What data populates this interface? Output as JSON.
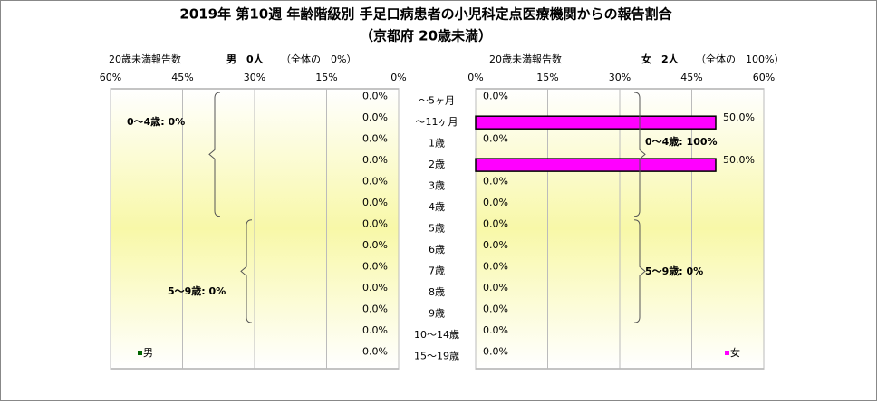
{
  "chart_data": {
    "type": "pyramid",
    "title": "2019年 第10週 年齢階級別 手足口病患者の小児科定点医療機関からの報告割合",
    "subtitle": "（京都府 20歳未満）",
    "categories": [
      "～5ヶ月",
      "～11ヶ月",
      "1歳",
      "2歳",
      "3歳",
      "4歳",
      "5歳",
      "6歳",
      "7歳",
      "8歳",
      "9歳",
      "10～14歳",
      "15～19歳"
    ],
    "panels": [
      {
        "side": "left",
        "count_label": "20歳未満報告数",
        "count": "男　0人",
        "share": "（全体の　0%）",
        "xlim": [
          0,
          60
        ],
        "xticks": [
          {
            "value": 0,
            "label": "0%"
          },
          {
            "value": 15,
            "label": "15%"
          },
          {
            "value": 30,
            "label": "30%"
          },
          {
            "value": 45,
            "label": "45%"
          },
          {
            "value": 60,
            "label": "60%"
          }
        ],
        "series": [
          {
            "name": "男",
            "color": "#006400",
            "values": [
              0,
              0,
              0,
              0,
              0,
              0,
              0,
              0,
              0,
              0,
              0,
              0,
              0
            ],
            "value_labels": [
              "0.0%",
              "0.0%",
              "0.0%",
              "0.0%",
              "0.0%",
              "0.0%",
              "0.0%",
              "0.0%",
              "0.0%",
              "0.0%",
              "0.0%",
              "0.0%",
              "0.0%"
            ]
          }
        ],
        "annotations": [
          "0～4歳: 0%",
          "5～9歳: 0%"
        ]
      },
      {
        "side": "right",
        "count_label": "20歳未満報告数",
        "count": "女　2人",
        "share": "（全体の　100%）",
        "xlim": [
          0,
          60
        ],
        "xticks": [
          {
            "value": 0,
            "label": "0%"
          },
          {
            "value": 15,
            "label": "15%"
          },
          {
            "value": 30,
            "label": "30%"
          },
          {
            "value": 45,
            "label": "45%"
          },
          {
            "value": 60,
            "label": "60%"
          }
        ],
        "series": [
          {
            "name": "女",
            "color": "#ff00ff",
            "values": [
              0,
              50,
              0,
              50,
              0,
              0,
              0,
              0,
              0,
              0,
              0,
              0,
              0
            ],
            "value_labels": [
              "0.0%",
              "50.0%",
              "0.0%",
              "50.0%",
              "0.0%",
              "0.0%",
              "0.0%",
              "0.0%",
              "0.0%",
              "0.0%",
              "0.0%",
              "0.0%",
              "0.0%"
            ]
          }
        ],
        "annotations": [
          "0～4歳: 100%",
          "5～9歳: 0%"
        ]
      }
    ]
  }
}
